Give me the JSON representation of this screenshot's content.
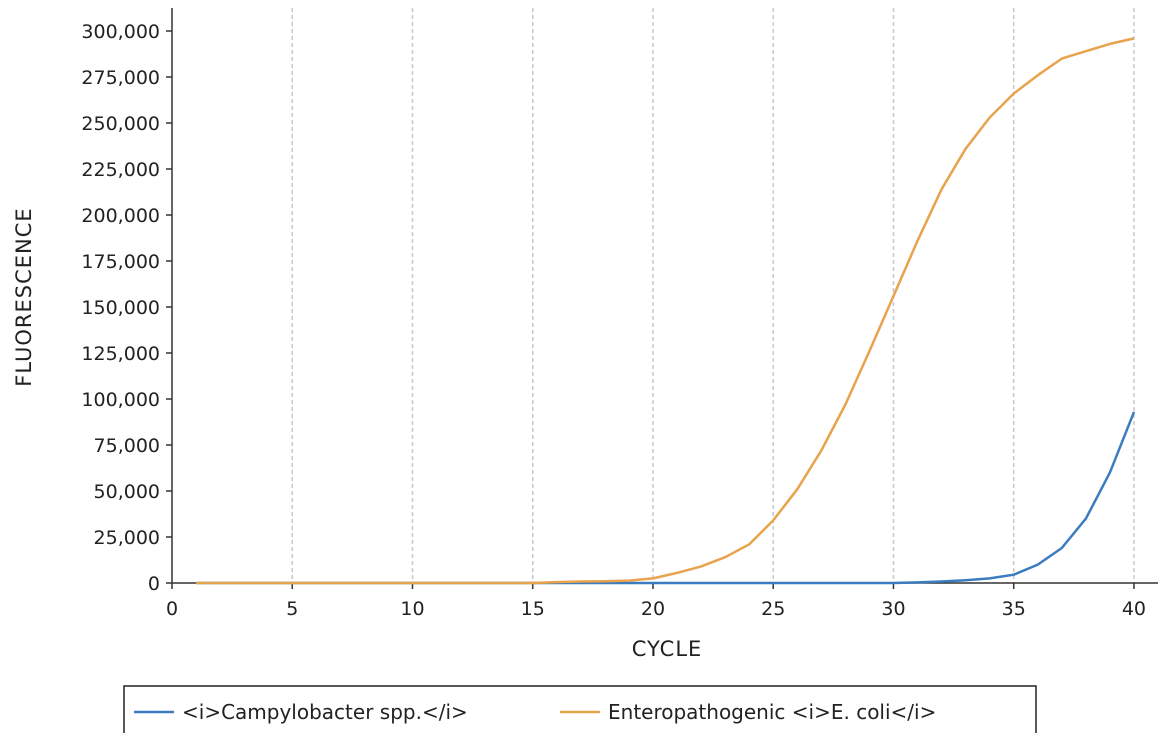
{
  "chart_data": {
    "type": "line",
    "xlabel": "CYCLE",
    "ylabel": "FLUORESCENCE",
    "xlim": [
      0,
      41
    ],
    "ylim": [
      0,
      300000
    ],
    "x_ticks": [
      "0",
      "5",
      "10",
      "15",
      "20",
      "25",
      "30",
      "35",
      "40"
    ],
    "y_ticks": [
      "0",
      "25,000",
      "50,000",
      "75,000",
      "100,000",
      "125,000",
      "150,000",
      "175,000",
      "200,000",
      "225,000",
      "250,000",
      "275,000",
      "300,000"
    ],
    "grid": "vertical dashed at x ticks",
    "legend": "bottom",
    "x": [
      1,
      2,
      3,
      4,
      5,
      6,
      7,
      8,
      9,
      10,
      11,
      12,
      13,
      14,
      15,
      16,
      17,
      18,
      19,
      20,
      21,
      22,
      23,
      24,
      25,
      26,
      27,
      28,
      29,
      30,
      31,
      32,
      33,
      34,
      35,
      36,
      37,
      38,
      39,
      40
    ],
    "series": [
      {
        "name": "<i>Campylobacter spp.</i>",
        "color": "#3b7bbf",
        "values": [
          0,
          0,
          0,
          0,
          0,
          0,
          0,
          0,
          0,
          0,
          0,
          0,
          0,
          0,
          0,
          0,
          0,
          0,
          0,
          0,
          0,
          0,
          0,
          0,
          0,
          0,
          0,
          0,
          0,
          0,
          300,
          800,
          1500,
          2500,
          4500,
          10000,
          19000,
          35000,
          60000,
          93000
        ]
      },
      {
        "name": "Enteropathogenic <i>E. coli</i>",
        "color": "#e8a34d",
        "values": [
          0,
          0,
          0,
          0,
          0,
          0,
          0,
          0,
          0,
          0,
          0,
          0,
          0,
          0,
          0,
          500,
          800,
          1000,
          1300,
          2500,
          5500,
          9000,
          14000,
          21000,
          34000,
          51000,
          72000,
          97000,
          126000,
          156000,
          186000,
          214000,
          236000,
          253000,
          266000,
          276000,
          285000,
          289000,
          293000,
          296000
        ]
      }
    ]
  }
}
